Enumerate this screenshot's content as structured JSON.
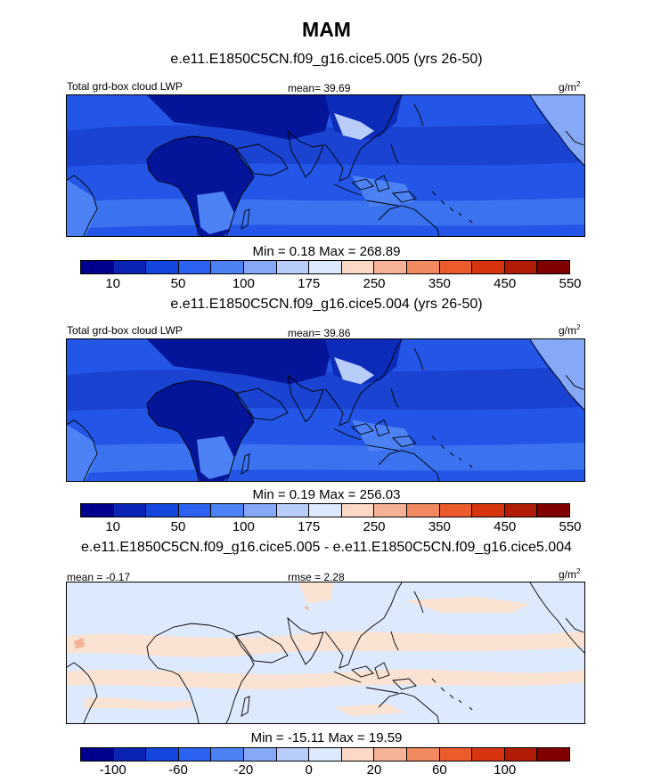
{
  "figure": {
    "title": "MAM",
    "panels": [
      {
        "id": "p1",
        "case_title": "e.e11.E1850C5CN.f09_g16.cice5.005 (yrs 26-50)",
        "left_label": "Total grd-box cloud LWP",
        "center_label": "mean=  39.69",
        "units": "g/m",
        "units_sup": "2",
        "minmax": "Min =   0.18 Max = 268.89",
        "mean": 39.69,
        "min": 0.18,
        "max": 268.89
      },
      {
        "id": "p2",
        "case_title": "e.e11.E1850C5CN.f09_g16.cice5.004 (yrs 26-50)",
        "left_label": "Total grd-box cloud LWP",
        "center_label": "mean=  39.86",
        "units": "g/m",
        "units_sup": "2",
        "minmax": "Min =   0.19 Max = 256.03",
        "mean": 39.86,
        "min": 0.19,
        "max": 256.03
      },
      {
        "id": "p3",
        "case_title": "e.e11.E1850C5CN.f09_g16.cice5.005 - e.e11.E1850C5CN.f09_g16.cice5.004",
        "left_label": "mean =  -0.17",
        "center_label": "rmse =   2.28",
        "units": "g/m",
        "units_sup": "2",
        "minmax": "Min = -15.11 Max =  19.59",
        "mean": -0.17,
        "rmse": 2.28,
        "min": -15.11,
        "max": 19.59
      }
    ],
    "colorbar_lwp": {
      "colors": [
        "#00008f",
        "#0a25b5",
        "#1346dc",
        "#2b63f0",
        "#4d82f5",
        "#86a9f7",
        "#b9cdfa",
        "#dde9fc",
        "#fbd9c6",
        "#f6b296",
        "#f2895f",
        "#ec5b2b",
        "#d73410",
        "#b11c06",
        "#800000"
      ],
      "tick_labels": [
        "10",
        "50",
        "100",
        "175",
        "250",
        "350",
        "450",
        "550"
      ]
    },
    "colorbar_diff": {
      "colors": [
        "#00008f",
        "#0a25b5",
        "#1346dc",
        "#2b63f0",
        "#4d82f5",
        "#86a9f7",
        "#b9cdfa",
        "#dde9fc",
        "#fbd9c6",
        "#f6b296",
        "#f2895f",
        "#ec5b2b",
        "#d73410",
        "#b11c06",
        "#800000"
      ],
      "tick_labels": [
        "-100",
        "-60",
        "-20",
        "0",
        "20",
        "60",
        "100"
      ]
    }
  }
}
